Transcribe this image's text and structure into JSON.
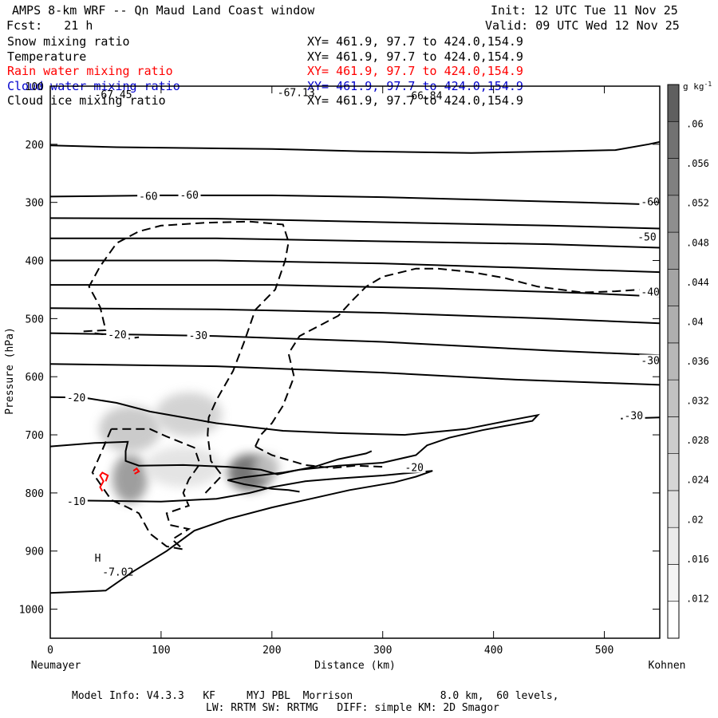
{
  "header": {
    "title": "AMPS 8-km WRF -- Qn Maud Land Coast window",
    "fcst": "Fcst:   21 h",
    "init": "Init: 12 UTC Tue 11 Nov 25",
    "valid": "Valid: 09 UTC Wed 12 Nov 25"
  },
  "fields": [
    {
      "name": "Snow mixing ratio",
      "xy": "XY= 461.9, 97.7 to 424.0,154.9",
      "color": "#000000"
    },
    {
      "name": "Temperature",
      "xy": "XY= 461.9, 97.7 to 424.0,154.9",
      "color": "#000000"
    },
    {
      "name": "Rain water mixing ratio",
      "xy": "XY= 461.9, 97.7 to 424.0,154.9",
      "color": "#ff0000"
    },
    {
      "name": "Cloud water mixing ratio",
      "xy": "XY= 461.9, 97.7 to 424.0,154.9",
      "color": "#0000cc"
    },
    {
      "name": "Cloud ice mixing ratio",
      "xy": "XY= 461.9, 97.7 to 424.0,154.9",
      "color": "#000000"
    }
  ],
  "footer": {
    "line1": "Model Info: V4.3.3   KF     MYJ PBL  Morrison              8.0 km,  60 levels,",
    "line2": "LW: RRTM SW: RRTMG   DIFF: simple KM: 2D Smagor"
  },
  "chart_data": {
    "type": "heatmap",
    "description": "Vertical cross section: shaded snow mixing ratio, solid temperature contours, dashed cloud ice, red rain water",
    "xlabel": "Distance (km)",
    "ylabel": "Pressure (hPa)",
    "xlim": [
      0,
      550
    ],
    "ylim": [
      1050,
      100
    ],
    "x_ticks": [
      0,
      100,
      200,
      300,
      400,
      500
    ],
    "y_ticks": [
      1000,
      900,
      800,
      700,
      600,
      500,
      400,
      300,
      200,
      100
    ],
    "left_endpoint": "Neumayer",
    "right_endpoint": "Kohnen",
    "colorbar": {
      "unit": "g kg",
      "unit_exp": "-1",
      "ticks": [
        ".06",
        ".056",
        ".052",
        ".048",
        ".044",
        ".04",
        ".036",
        ".032",
        ".028",
        ".024",
        ".02",
        ".016",
        ".012"
      ],
      "tick_values": [
        0.06,
        0.056,
        0.052,
        0.048,
        0.044,
        0.04,
        0.036,
        0.032,
        0.028,
        0.024,
        0.02,
        0.016,
        0.012
      ],
      "range": [
        0.008,
        0.064
      ],
      "colors": [
        "#ffffff",
        "#f4f4f4",
        "#eaeaea",
        "#e0e0e0",
        "#d6d6d6",
        "#cccccc",
        "#c2c2c2",
        "#b8b8b8",
        "#aeaeae",
        "#a4a4a4",
        "#9a9a9a",
        "#8e8e8e",
        "#808080",
        "#727272",
        "#5f5f5f"
      ]
    },
    "shading_blobs": [
      {
        "x": 72,
        "p": 775,
        "sx": 16,
        "sp": 42,
        "v": 0.05
      },
      {
        "x": 72,
        "p": 690,
        "sx": 28,
        "sp": 40,
        "v": 0.03
      },
      {
        "x": 125,
        "p": 665,
        "sx": 30,
        "sp": 38,
        "v": 0.026
      },
      {
        "x": 120,
        "p": 755,
        "sx": 35,
        "sp": 35,
        "v": 0.022
      },
      {
        "x": 180,
        "p": 765,
        "sx": 20,
        "sp": 32,
        "v": 0.064
      },
      {
        "x": 195,
        "p": 755,
        "sx": 12,
        "sp": 22,
        "v": 0.03
      }
    ],
    "temperature_contours": [
      {
        "label": "-60",
        "points": [
          [
            0,
            202
          ],
          [
            60,
            205
          ],
          [
            200,
            208
          ],
          [
            280,
            212
          ],
          [
            380,
            215
          ],
          [
            460,
            212
          ],
          [
            510,
            210
          ],
          [
            540,
            200
          ],
          [
            550,
            196
          ]
        ]
      },
      {
        "label": "-60",
        "points": [
          [
            0,
            290
          ],
          [
            100,
            288
          ],
          [
            200,
            288
          ],
          [
            300,
            291
          ],
          [
            400,
            296
          ],
          [
            480,
            300
          ],
          [
            550,
            304
          ]
        ]
      },
      {
        "label": "-50",
        "points": [
          [
            0,
            327
          ],
          [
            150,
            328
          ],
          [
            300,
            334
          ],
          [
            450,
            340
          ],
          [
            550,
            345
          ]
        ]
      },
      {
        "label": "",
        "points": [
          [
            0,
            362
          ],
          [
            150,
            362
          ],
          [
            300,
            367
          ],
          [
            450,
            372
          ],
          [
            550,
            378
          ]
        ]
      },
      {
        "label": "",
        "points": [
          [
            0,
            400
          ],
          [
            150,
            400
          ],
          [
            300,
            405
          ],
          [
            450,
            414
          ],
          [
            550,
            420
          ]
        ]
      },
      {
        "label": "",
        "points": [
          [
            0,
            442
          ],
          [
            200,
            442
          ],
          [
            350,
            448
          ],
          [
            480,
            456
          ],
          [
            550,
            462
          ]
        ]
      },
      {
        "label": "-40",
        "points": [
          [
            0,
            482
          ],
          [
            150,
            484
          ],
          [
            300,
            490
          ],
          [
            450,
            500
          ],
          [
            550,
            508
          ]
        ]
      },
      {
        "label": "-30",
        "points": [
          [
            0,
            525
          ],
          [
            150,
            530
          ],
          [
            300,
            540
          ],
          [
            450,
            555
          ],
          [
            550,
            563
          ]
        ]
      },
      {
        "label": "-30",
        "points": [
          [
            0,
            578
          ],
          [
            150,
            582
          ],
          [
            300,
            593
          ],
          [
            420,
            605
          ],
          [
            550,
            614
          ]
        ]
      },
      {
        "label": "-20",
        "points": [
          [
            0,
            635
          ],
          [
            30,
            636
          ],
          [
            60,
            645
          ],
          [
            90,
            660
          ],
          [
            150,
            680
          ],
          [
            210,
            693
          ],
          [
            260,
            697
          ],
          [
            320,
            700
          ],
          [
            375,
            690
          ],
          [
            415,
            675
          ],
          [
            440,
            666
          ],
          [
            435,
            676
          ],
          [
            390,
            692
          ],
          [
            360,
            705
          ],
          [
            340,
            718
          ],
          [
            330,
            735
          ],
          [
            300,
            748
          ],
          [
            260,
            753
          ],
          [
            225,
            760
          ],
          [
            210,
            765
          ],
          [
            175,
            773
          ],
          [
            160,
            778
          ],
          [
            175,
            785
          ],
          [
            200,
            793
          ],
          [
            215,
            795
          ],
          [
            225,
            798
          ]
        ]
      },
      {
        "label": "",
        "points": [
          [
            0,
            720
          ],
          [
            40,
            714
          ],
          [
            70,
            712
          ],
          [
            68,
            728
          ],
          [
            68,
            745
          ],
          [
            80,
            753
          ],
          [
            120,
            752
          ],
          [
            160,
            755
          ],
          [
            190,
            760
          ],
          [
            205,
            768
          ],
          [
            220,
            762
          ],
          [
            240,
            754
          ],
          [
            260,
            742
          ],
          [
            285,
            732
          ],
          [
            290,
            728
          ]
        ]
      },
      {
        "label": "-10",
        "points": [
          [
            25,
            813
          ],
          [
            100,
            815
          ],
          [
            150,
            810
          ],
          [
            180,
            800
          ],
          [
            200,
            790
          ],
          [
            230,
            780
          ],
          [
            260,
            775
          ],
          [
            300,
            770
          ],
          [
            345,
            762
          ],
          [
            330,
            772
          ],
          [
            310,
            782
          ],
          [
            270,
            795
          ],
          [
            240,
            808
          ],
          [
            200,
            825
          ],
          [
            160,
            845
          ],
          [
            130,
            865
          ],
          [
            105,
            900
          ],
          [
            75,
            935
          ],
          [
            50,
            968
          ],
          [
            0,
            972
          ]
        ]
      },
      {
        "label": "-30",
        "points": [
          [
            515,
            672
          ],
          [
            550,
            670
          ]
        ]
      }
    ],
    "temperature_label_positions": [
      {
        "x": 80,
        "p": 290,
        "label": "-60"
      },
      {
        "x": 117,
        "p": 288,
        "label": "-60"
      },
      {
        "x": 533,
        "p": 300,
        "label": "-60"
      },
      {
        "x": 530,
        "p": 360,
        "label": "-50"
      },
      {
        "x": 533,
        "p": 455,
        "label": "-40"
      },
      {
        "x": 52,
        "p": 528,
        "label": "-20"
      },
      {
        "x": 125,
        "p": 530,
        "label": "-30"
      },
      {
        "x": 533,
        "p": 573,
        "label": "-30"
      },
      {
        "x": 15,
        "p": 637,
        "label": "-20"
      },
      {
        "x": 518,
        "p": 668,
        "label": "-30"
      },
      {
        "x": 15,
        "p": 815,
        "label": "-10"
      },
      {
        "x": 320,
        "p": 757,
        "label": "-20"
      }
    ],
    "cloud_ice_contours": [
      {
        "points": [
          [
            55,
            690
          ],
          [
            45,
            735
          ],
          [
            38,
            765
          ],
          [
            55,
            812
          ],
          [
            70,
            825
          ],
          [
            80,
            835
          ],
          [
            90,
            870
          ],
          [
            105,
            892
          ],
          [
            120,
            897
          ],
          [
            110,
            880
          ],
          [
            125,
            862
          ],
          [
            108,
            855
          ],
          [
            105,
            835
          ],
          [
            125,
            822
          ],
          [
            120,
            800
          ],
          [
            125,
            777
          ],
          [
            135,
            750
          ],
          [
            130,
            722
          ],
          [
            105,
            703
          ],
          [
            90,
            690
          ],
          [
            55,
            690
          ]
        ]
      },
      {
        "points": [
          [
            30,
            522
          ],
          [
            50,
            520
          ],
          [
            45,
            480
          ],
          [
            35,
            445
          ],
          [
            45,
            410
          ],
          [
            60,
            370
          ],
          [
            80,
            350
          ],
          [
            100,
            340
          ],
          [
            140,
            335
          ],
          [
            180,
            333
          ],
          [
            210,
            338
          ],
          [
            215,
            368
          ],
          [
            212,
            400
          ],
          [
            203,
            450
          ],
          [
            185,
            485
          ],
          [
            175,
            540
          ],
          [
            165,
            590
          ],
          [
            150,
            640
          ],
          [
            143,
            670
          ],
          [
            142,
            700
          ],
          [
            145,
            745
          ],
          [
            155,
            770
          ],
          [
            140,
            800
          ]
        ]
      },
      {
        "points": [
          [
            185,
            720
          ],
          [
            190,
            700
          ],
          [
            200,
            680
          ],
          [
            210,
            650
          ],
          [
            220,
            600
          ],
          [
            215,
            560
          ],
          [
            225,
            530
          ],
          [
            245,
            510
          ],
          [
            260,
            495
          ],
          [
            272,
            470
          ],
          [
            285,
            445
          ],
          [
            300,
            428
          ],
          [
            330,
            414
          ],
          [
            350,
            414
          ],
          [
            380,
            420
          ],
          [
            410,
            430
          ],
          [
            440,
            445
          ],
          [
            460,
            450
          ],
          [
            480,
            455
          ],
          [
            510,
            453
          ],
          [
            550,
            448
          ]
        ]
      },
      {
        "points": [
          [
            185,
            720
          ],
          [
            200,
            735
          ],
          [
            230,
            752
          ],
          [
            255,
            757
          ],
          [
            275,
            753
          ],
          [
            300,
            755
          ]
        ]
      },
      {
        "points": [
          [
            40,
            525
          ],
          [
            60,
            530
          ],
          [
            68,
            535
          ],
          [
            80,
            532
          ]
        ]
      }
    ],
    "rain_water_contours": [
      {
        "points": [
          [
            47,
            797
          ],
          [
            45,
            790
          ],
          [
            48,
            780
          ],
          [
            45,
            770
          ],
          [
            47,
            765
          ],
          [
            52,
            770
          ],
          [
            50,
            780
          ]
        ]
      },
      {
        "points": [
          [
            75,
            762
          ],
          [
            78,
            758
          ],
          [
            80,
            763
          ],
          [
            76,
            767
          ]
        ]
      }
    ],
    "point_annotations": [
      {
        "x": 40,
        "p": 115,
        "text": "-67.45"
      },
      {
        "x": 205,
        "p": 112,
        "text": "-67.13"
      },
      {
        "x": 320,
        "p": 117,
        "text": "-66.84"
      },
      {
        "x": 40,
        "p": 913,
        "text": "H"
      },
      {
        "x": 47,
        "p": 937,
        "text": "-7.02"
      }
    ]
  }
}
